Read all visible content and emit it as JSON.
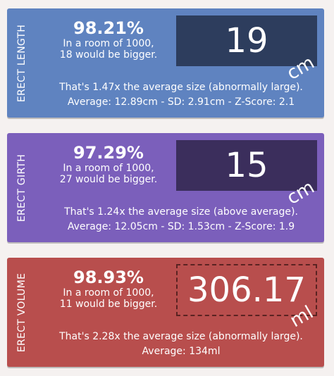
{
  "cards": [
    {
      "label": "ERECT LENGTH",
      "percentile": "98.21%",
      "room_line1": "In a room of 1000,",
      "room_line2": "18 would be bigger.",
      "value": "19",
      "unit": "cm",
      "comparison": "That's 1.47x the average size (abnormally large).",
      "stats": "Average: 12.89cm - SD: 2.91cm - Z-Score: 2.1"
    },
    {
      "label": "ERECT GIRTH",
      "percentile": "97.29%",
      "room_line1": "In a room of 1000,",
      "room_line2": "27 would be bigger.",
      "value": "15",
      "unit": "cm",
      "comparison": "That's 1.24x the average size (above average).",
      "stats": "Average: 12.05cm - SD: 1.53cm - Z-Score: 1.9"
    },
    {
      "label": "ERECT VOLUME",
      "percentile": "98.93%",
      "room_line1": "In a room of 1000,",
      "room_line2": "11 would be bigger.",
      "value": "306.17",
      "unit": "ml",
      "comparison": "That's 2.28x the average size (abnormally large).",
      "stats": "Average: 134ml"
    }
  ],
  "colors": {
    "page_background": "#f5f1f0",
    "length_card": "#5f83c0",
    "girth_card": "#7b5fbb",
    "volume_card": "#b84e4d",
    "length_value_box": "#2d3d5d",
    "girth_value_box": "#3b2e5c",
    "volume_value_border": "#5a2322"
  }
}
